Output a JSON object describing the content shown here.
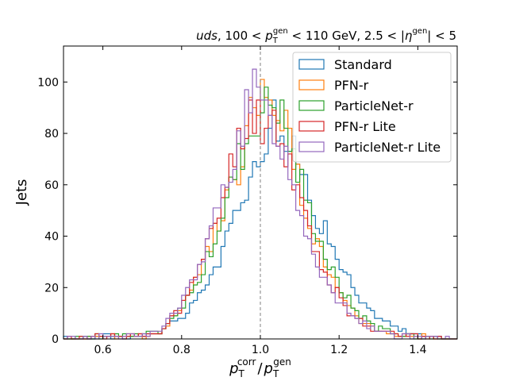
{
  "chart_data": {
    "type": "histogram",
    "title_parts": {
      "flavor": "uds",
      "pt_low": "100",
      "pt_var": "p",
      "pt_sub": "T",
      "pt_sup": "gen",
      "pt_high": "110 GeV",
      "eta_low": "2.5",
      "eta_var": "η",
      "eta_sup": "gen",
      "eta_high": "5"
    },
    "xlabel_parts": {
      "num_var": "p",
      "num_sub": "T",
      "num_sup": "corr",
      "slash": "/",
      "den_var": "p",
      "den_sub": "T",
      "den_sup": "gen"
    },
    "ylabel": "Jets",
    "xlim": [
      0.5,
      1.5
    ],
    "ylim": [
      0,
      114
    ],
    "xticks": [
      "0.6",
      "0.8",
      "1.0",
      "1.2",
      "1.4"
    ],
    "yticks": [
      "0",
      "20",
      "40",
      "60",
      "80",
      "100"
    ],
    "reference_line": 1.0,
    "legend_position": "upper right",
    "series": [
      {
        "name": "Standard",
        "color": "#1f77b4",
        "anchors": [
          [
            0.5,
            0
          ],
          [
            0.6,
            1
          ],
          [
            0.7,
            1
          ],
          [
            0.75,
            3
          ],
          [
            0.8,
            8
          ],
          [
            0.85,
            18
          ],
          [
            0.9,
            32
          ],
          [
            0.95,
            55
          ],
          [
            1.0,
            70
          ],
          [
            1.03,
            92
          ],
          [
            1.05,
            80
          ],
          [
            1.1,
            68
          ],
          [
            1.15,
            47
          ],
          [
            1.2,
            30
          ],
          [
            1.25,
            15
          ],
          [
            1.3,
            8
          ],
          [
            1.35,
            4
          ],
          [
            1.4,
            1.5
          ],
          [
            1.48,
            0
          ]
        ]
      },
      {
        "name": "PFN-r",
        "color": "#ff7f0e",
        "anchors": [
          [
            0.5,
            0
          ],
          [
            0.6,
            1
          ],
          [
            0.7,
            1
          ],
          [
            0.75,
            3
          ],
          [
            0.8,
            12
          ],
          [
            0.85,
            26
          ],
          [
            0.9,
            48
          ],
          [
            0.95,
            70
          ],
          [
            0.98,
            88
          ],
          [
            1.0,
            92
          ],
          [
            1.03,
            98
          ],
          [
            1.05,
            90
          ],
          [
            1.1,
            60
          ],
          [
            1.15,
            35
          ],
          [
            1.2,
            18
          ],
          [
            1.25,
            8
          ],
          [
            1.3,
            4
          ],
          [
            1.35,
            2
          ],
          [
            1.4,
            1
          ],
          [
            1.48,
            0
          ]
        ]
      },
      {
        "name": "ParticleNet-r",
        "color": "#2ca02c",
        "anchors": [
          [
            0.5,
            0
          ],
          [
            0.6,
            1
          ],
          [
            0.7,
            1
          ],
          [
            0.75,
            3
          ],
          [
            0.8,
            12
          ],
          [
            0.85,
            25
          ],
          [
            0.9,
            46
          ],
          [
            0.95,
            72
          ],
          [
            0.98,
            82
          ],
          [
            1.0,
            88
          ],
          [
            1.03,
            94
          ],
          [
            1.05,
            90
          ],
          [
            1.1,
            62
          ],
          [
            1.15,
            38
          ],
          [
            1.2,
            20
          ],
          [
            1.25,
            10
          ],
          [
            1.3,
            4
          ],
          [
            1.35,
            2
          ],
          [
            1.4,
            1
          ],
          [
            1.48,
            0
          ]
        ]
      },
      {
        "name": "PFN-r Lite",
        "color": "#d62728",
        "anchors": [
          [
            0.5,
            0
          ],
          [
            0.6,
            1
          ],
          [
            0.7,
            1
          ],
          [
            0.75,
            3
          ],
          [
            0.8,
            13
          ],
          [
            0.85,
            28
          ],
          [
            0.9,
            52
          ],
          [
            0.95,
            80
          ],
          [
            0.98,
            88
          ],
          [
            1.0,
            85
          ],
          [
            1.03,
            86
          ],
          [
            1.05,
            80
          ],
          [
            1.1,
            55
          ],
          [
            1.15,
            30
          ],
          [
            1.2,
            16
          ],
          [
            1.25,
            7
          ],
          [
            1.3,
            3
          ],
          [
            1.35,
            2
          ],
          [
            1.4,
            1
          ],
          [
            1.48,
            0
          ]
        ]
      },
      {
        "name": "ParticleNet-r Lite",
        "color": "#9467bd",
        "anchors": [
          [
            0.5,
            0
          ],
          [
            0.6,
            1
          ],
          [
            0.7,
            1
          ],
          [
            0.75,
            4
          ],
          [
            0.8,
            14
          ],
          [
            0.85,
            30
          ],
          [
            0.9,
            54
          ],
          [
            0.95,
            82
          ],
          [
            0.99,
            98
          ],
          [
            1.0,
            90
          ],
          [
            1.03,
            84
          ],
          [
            1.05,
            80
          ],
          [
            1.1,
            52
          ],
          [
            1.15,
            28
          ],
          [
            1.2,
            15
          ],
          [
            1.25,
            7
          ],
          [
            1.3,
            3
          ],
          [
            1.35,
            1
          ],
          [
            1.4,
            1
          ],
          [
            1.48,
            0
          ]
        ]
      }
    ]
  }
}
